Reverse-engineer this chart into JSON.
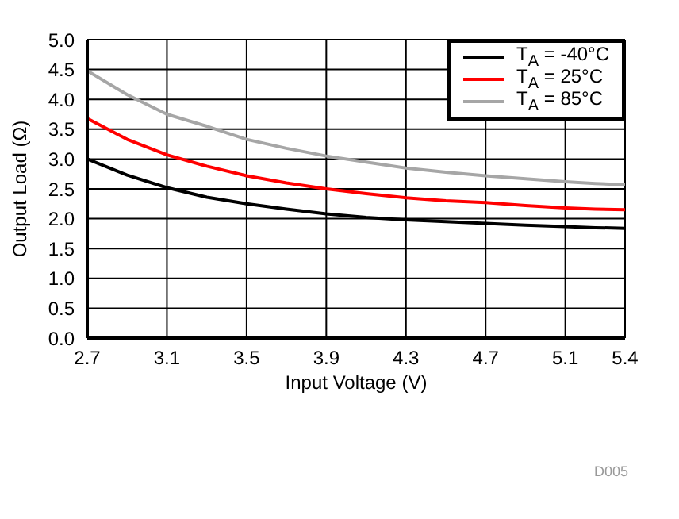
{
  "chart_data": {
    "type": "line",
    "xlabel": "Input Voltage (V)",
    "ylabel": "Output Load (Ω)",
    "annotations": [
      "D005"
    ],
    "x": [
      2.7,
      2.9,
      3.1,
      3.3,
      3.5,
      3.7,
      3.9,
      4.1,
      4.3,
      4.5,
      4.7,
      4.9,
      5.1,
      5.25,
      5.4
    ],
    "series": [
      {
        "name": "T$_{A}$ = -40°C",
        "color": "#000000",
        "values": [
          3.0,
          2.73,
          2.52,
          2.36,
          2.25,
          2.16,
          2.08,
          2.02,
          1.98,
          1.95,
          1.92,
          1.89,
          1.87,
          1.85,
          1.84
        ]
      },
      {
        "name": "T$_{A}$ = 25°C",
        "color": "#ff0000",
        "values": [
          3.68,
          3.33,
          3.07,
          2.88,
          2.72,
          2.6,
          2.5,
          2.42,
          2.35,
          2.3,
          2.27,
          2.22,
          2.18,
          2.16,
          2.15
        ]
      },
      {
        "name": "T$_{A}$ = 85°C",
        "color": "#a6a6a6",
        "values": [
          4.48,
          4.08,
          3.75,
          3.55,
          3.33,
          3.18,
          3.05,
          2.95,
          2.85,
          2.78,
          2.72,
          2.67,
          2.62,
          2.59,
          2.57
        ]
      }
    ],
    "xlim": [
      2.7,
      5.4
    ],
    "xticks": [
      2.7,
      3.1,
      3.5,
      3.9,
      4.3,
      4.7,
      5.1,
      5.4
    ],
    "ylim": [
      0,
      5
    ],
    "yticks": [
      {
        "value": 0,
        "label": "0.0"
      },
      0.5,
      {
        "value": 1,
        "label": "1.0"
      },
      1.5,
      {
        "value": 2,
        "label": "2.0"
      },
      2.5,
      {
        "value": 3,
        "label": "3.0"
      },
      3.5,
      {
        "value": 4,
        "label": "4.0"
      },
      4.5,
      {
        "value": 5,
        "label": "5.0"
      }
    ],
    "grid": true,
    "legend": "top right",
    "marker": "none",
    "line_style": "solid"
  }
}
